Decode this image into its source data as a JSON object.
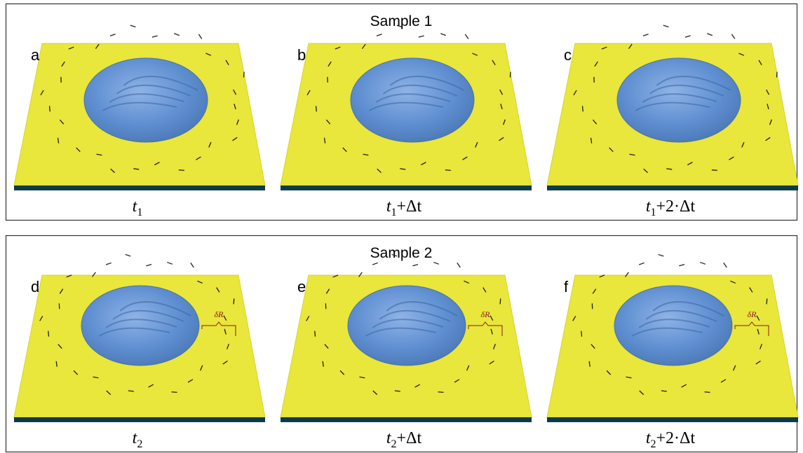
{
  "panels": [
    {
      "title": "Sample 1",
      "items": [
        {
          "letter": "a",
          "caption": {
            "base": "t",
            "sub": "1",
            "rest": ""
          }
        },
        {
          "letter": "b",
          "caption": {
            "base": "t",
            "sub": "1",
            "rest": "+Δt"
          }
        },
        {
          "letter": "c",
          "caption": {
            "base": "t",
            "sub": "1",
            "rest": "+2·Δt"
          }
        }
      ]
    },
    {
      "title": "Sample 2",
      "annotation": "δR",
      "items": [
        {
          "letter": "d",
          "caption": {
            "base": "t",
            "sub": "2",
            "rest": ""
          }
        },
        {
          "letter": "e",
          "caption": {
            "base": "t",
            "sub": "2",
            "rest": "+Δt"
          }
        },
        {
          "letter": "f",
          "caption": {
            "base": "t",
            "sub": "2",
            "rest": "+2·Δt"
          }
        }
      ]
    }
  ]
}
